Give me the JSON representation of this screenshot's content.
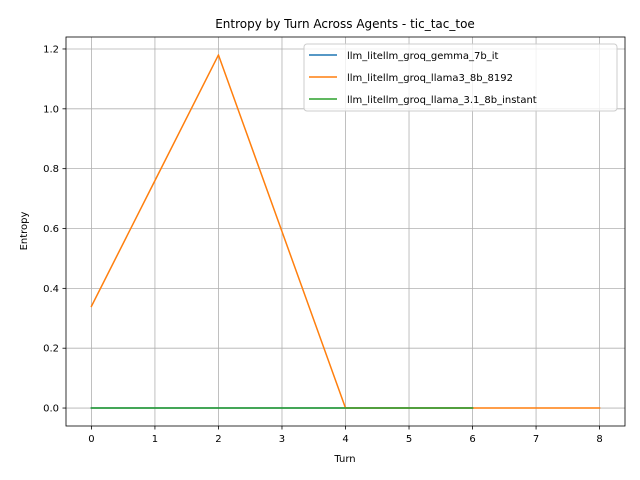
{
  "chart_data": {
    "type": "line",
    "title": "Entropy by Turn Across Agents - tic_tac_toe",
    "xlabel": "Turn",
    "ylabel": "Entropy",
    "xlim": [
      -0.4,
      8.4
    ],
    "ylim": [
      -0.06,
      1.24
    ],
    "xticks": [
      0,
      1,
      2,
      3,
      4,
      5,
      6,
      7,
      8
    ],
    "yticks": [
      0.0,
      0.2,
      0.4,
      0.6,
      0.8,
      1.0,
      1.2
    ],
    "ytick_labels": [
      "0.0",
      "0.2",
      "0.4",
      "0.6",
      "0.8",
      "1.0",
      "1.2"
    ],
    "grid": true,
    "legend_position": "upper right",
    "series": [
      {
        "name": "llm_litellm_groq_gemma_7b_it",
        "color": "#1f77b4",
        "x": [
          0,
          1,
          2,
          3,
          4,
          5,
          6
        ],
        "y": [
          0,
          0,
          0,
          0,
          0,
          0,
          0
        ]
      },
      {
        "name": "llm_litellm_groq_llama3_8b_8192",
        "color": "#ff7f0e",
        "x": [
          0,
          1,
          2,
          3,
          4,
          5,
          6,
          7,
          8
        ],
        "y": [
          0.34,
          0.76,
          1.18,
          0.59,
          0.0,
          0.0,
          0.0,
          0.0,
          0.0
        ]
      },
      {
        "name": "llm_litellm_groq_llama_3.1_8b_instant",
        "color": "#2ca02c",
        "x": [
          0,
          1,
          2,
          3,
          4,
          5,
          6
        ],
        "y": [
          0,
          0,
          0,
          0,
          0,
          0,
          0
        ]
      }
    ]
  }
}
